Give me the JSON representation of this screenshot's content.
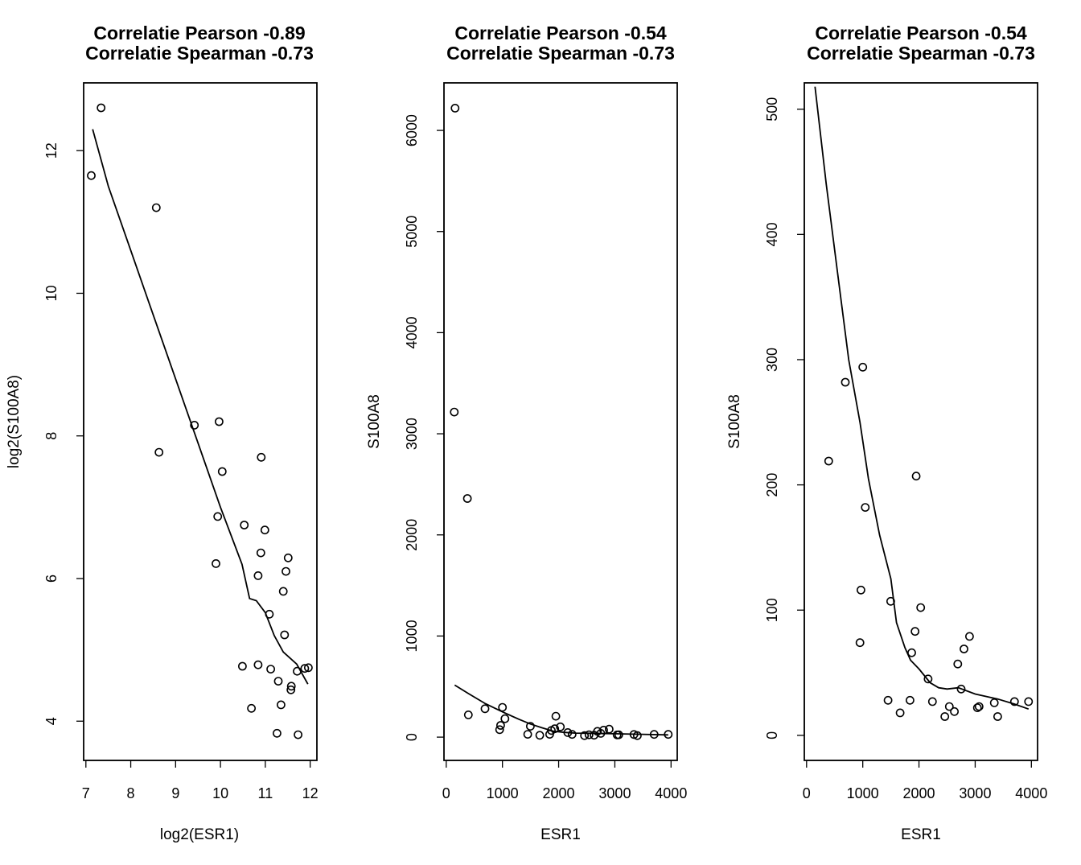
{
  "chart_data": [
    {
      "type": "scatter",
      "title_line1": "Correlatie Pearson -0.89",
      "title_line2": "Correlatie Spearman -0.73",
      "xlabel": "log2(ESR1)",
      "ylabel": "log2(S100A8)",
      "xlim": [
        6.95,
        12.15
      ],
      "ylim": [
        3.45,
        12.95
      ],
      "xticks": [
        7,
        8,
        9,
        10,
        11,
        12
      ],
      "yticks": [
        4,
        6,
        8,
        10,
        12
      ],
      "points": [
        [
          7.12,
          11.65
        ],
        [
          7.34,
          12.6
        ],
        [
          8.57,
          11.2
        ],
        [
          8.63,
          7.77
        ],
        [
          9.42,
          8.15
        ],
        [
          9.97,
          8.2
        ],
        [
          10.04,
          7.5
        ],
        [
          9.94,
          6.87
        ],
        [
          9.9,
          6.21
        ],
        [
          10.53,
          6.75
        ],
        [
          10.91,
          7.7
        ],
        [
          10.99,
          6.68
        ],
        [
          10.9,
          6.36
        ],
        [
          10.84,
          6.04
        ],
        [
          11.51,
          6.29
        ],
        [
          11.46,
          6.1
        ],
        [
          11.4,
          5.82
        ],
        [
          11.09,
          5.5
        ],
        [
          11.43,
          5.21
        ],
        [
          10.49,
          4.77
        ],
        [
          10.84,
          4.79
        ],
        [
          11.12,
          4.73
        ],
        [
          11.29,
          4.56
        ],
        [
          11.58,
          4.49
        ],
        [
          11.57,
          4.44
        ],
        [
          11.71,
          4.7
        ],
        [
          11.88,
          4.74
        ],
        [
          11.96,
          4.75
        ],
        [
          10.69,
          4.18
        ],
        [
          11.35,
          4.23
        ],
        [
          11.26,
          3.83
        ],
        [
          11.73,
          3.81
        ]
      ],
      "smooth_line": [
        [
          7.15,
          12.3
        ],
        [
          7.5,
          11.5
        ],
        [
          8.0,
          10.6
        ],
        [
          8.5,
          9.7
        ],
        [
          9.0,
          8.8
        ],
        [
          9.5,
          7.9
        ],
        [
          10.0,
          7.0
        ],
        [
          10.48,
          6.2
        ],
        [
          10.65,
          5.72
        ],
        [
          10.8,
          5.69
        ],
        [
          11.0,
          5.52
        ],
        [
          11.2,
          5.2
        ],
        [
          11.4,
          4.97
        ],
        [
          11.7,
          4.8
        ],
        [
          11.95,
          4.52
        ]
      ]
    },
    {
      "type": "scatter",
      "title_line1": "Correlatie Pearson -0.54",
      "title_line2": "Correlatie Spearman -0.73",
      "xlabel": "ESR1",
      "ylabel": "S100A8",
      "xlim": [
        -40,
        4110
      ],
      "ylim": [
        -230,
        6470
      ],
      "xticks": [
        0,
        1000,
        2000,
        3000,
        4000
      ],
      "yticks": [
        0,
        1000,
        2000,
        3000,
        4000,
        5000,
        6000
      ],
      "points": [
        [
          158,
          6220
        ],
        [
          143,
          3215
        ],
        [
          376,
          2360
        ],
        [
          394,
          220
        ],
        [
          690,
          281
        ],
        [
          1000,
          294
        ],
        [
          950,
          74
        ],
        [
          968,
          116
        ],
        [
          1045,
          182
        ],
        [
          1450,
          28
        ],
        [
          1497,
          107
        ],
        [
          1665,
          18
        ],
        [
          1840,
          28
        ],
        [
          1870,
          66
        ],
        [
          1930,
          83
        ],
        [
          1950,
          207
        ],
        [
          2030,
          102
        ],
        [
          2163,
          45
        ],
        [
          2240,
          27
        ],
        [
          2460,
          15
        ],
        [
          2540,
          23
        ],
        [
          2630,
          19
        ],
        [
          2690,
          57
        ],
        [
          2750,
          37
        ],
        [
          2800,
          69
        ],
        [
          2900,
          79
        ],
        [
          3040,
          22
        ],
        [
          3070,
          23
        ],
        [
          3340,
          26
        ],
        [
          3400,
          15
        ],
        [
          3700,
          27
        ],
        [
          3950,
          27
        ]
      ],
      "smooth_line": [
        [
          150,
          515
        ],
        [
          400,
          430
        ],
        [
          700,
          330
        ],
        [
          1000,
          250
        ],
        [
          1300,
          175
        ],
        [
          1500,
          130
        ],
        [
          1700,
          93
        ],
        [
          1900,
          60
        ],
        [
          2100,
          47
        ],
        [
          2300,
          40
        ],
        [
          2600,
          38
        ],
        [
          3000,
          33
        ],
        [
          3500,
          28
        ],
        [
          3950,
          22
        ]
      ]
    },
    {
      "type": "scatter",
      "title_line1": "Correlatie Pearson -0.54",
      "title_line2": "Correlatie Spearman -0.73",
      "xlabel": "ESR1",
      "ylabel": "S100A8",
      "xlim": [
        -40,
        4110
      ],
      "ylim": [
        -20,
        521
      ],
      "xticks": [
        0,
        1000,
        2000,
        3000,
        4000
      ],
      "yticks": [
        0,
        100,
        200,
        300,
        400,
        500
      ],
      "points": [
        [
          394,
          219
        ],
        [
          690,
          282
        ],
        [
          1000,
          294
        ],
        [
          950,
          74
        ],
        [
          968,
          116
        ],
        [
          1045,
          182
        ],
        [
          1450,
          28
        ],
        [
          1497,
          107
        ],
        [
          1665,
          18
        ],
        [
          1840,
          28
        ],
        [
          1870,
          66
        ],
        [
          1930,
          83
        ],
        [
          1950,
          207
        ],
        [
          2030,
          102
        ],
        [
          2163,
          45
        ],
        [
          2240,
          27
        ],
        [
          2460,
          15
        ],
        [
          2540,
          23
        ],
        [
          2630,
          19
        ],
        [
          2690,
          57
        ],
        [
          2750,
          37
        ],
        [
          2800,
          69
        ],
        [
          2900,
          79
        ],
        [
          3040,
          22
        ],
        [
          3070,
          23
        ],
        [
          3340,
          26
        ],
        [
          3400,
          15
        ],
        [
          3700,
          27
        ],
        [
          3950,
          27
        ]
      ],
      "smooth_line": [
        [
          150,
          518
        ],
        [
          350,
          440
        ],
        [
          550,
          370
        ],
        [
          750,
          300
        ],
        [
          950,
          250
        ],
        [
          1100,
          205
        ],
        [
          1300,
          160
        ],
        [
          1500,
          125
        ],
        [
          1600,
          90
        ],
        [
          1750,
          70
        ],
        [
          1850,
          60
        ],
        [
          2000,
          53
        ],
        [
          2200,
          42
        ],
        [
          2350,
          38
        ],
        [
          2500,
          37
        ],
        [
          2700,
          38
        ],
        [
          3000,
          33
        ],
        [
          3400,
          29
        ],
        [
          3700,
          25
        ],
        [
          3950,
          21
        ]
      ]
    }
  ]
}
